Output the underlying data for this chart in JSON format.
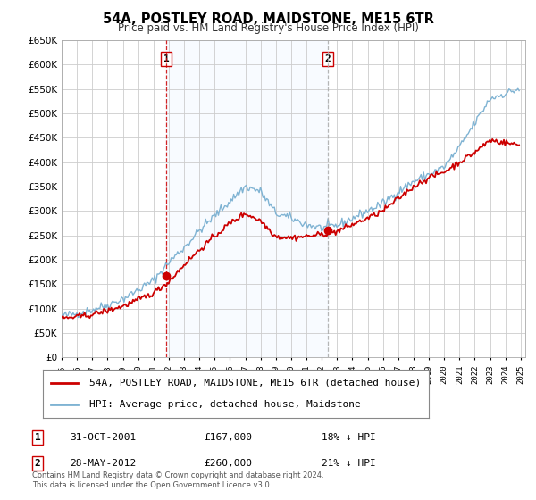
{
  "title": "54A, POSTLEY ROAD, MAIDSTONE, ME15 6TR",
  "subtitle": "Price paid vs. HM Land Registry's House Price Index (HPI)",
  "legend_line1": "54A, POSTLEY ROAD, MAIDSTONE, ME15 6TR (detached house)",
  "legend_line2": "HPI: Average price, detached house, Maidstone",
  "sale1_date": "31-OCT-2001",
  "sale1_price": "£167,000",
  "sale1_hpi": "18% ↓ HPI",
  "sale2_date": "28-MAY-2012",
  "sale2_price": "£260,000",
  "sale2_hpi": "21% ↓ HPI",
  "footnote1": "Contains HM Land Registry data © Crown copyright and database right 2024.",
  "footnote2": "This data is licensed under the Open Government Licence v3.0.",
  "property_color": "#cc0000",
  "hpi_color": "#7fb3d3",
  "vline1_color": "#cc0000",
  "vline2_color": "#aaaaaa",
  "span_color": "#ddeeff",
  "grid_color": "#cccccc",
  "background_color": "#ffffff",
  "ylim": [
    0,
    650000
  ],
  "yticks": [
    0,
    50000,
    100000,
    150000,
    200000,
    250000,
    300000,
    350000,
    400000,
    450000,
    500000,
    550000,
    600000,
    650000
  ],
  "xlim_start": 1995.0,
  "xlim_end": 2025.3,
  "sale1_x": 2001.83,
  "sale1_y": 167000,
  "sale2_x": 2012.41,
  "sale2_y": 260000
}
